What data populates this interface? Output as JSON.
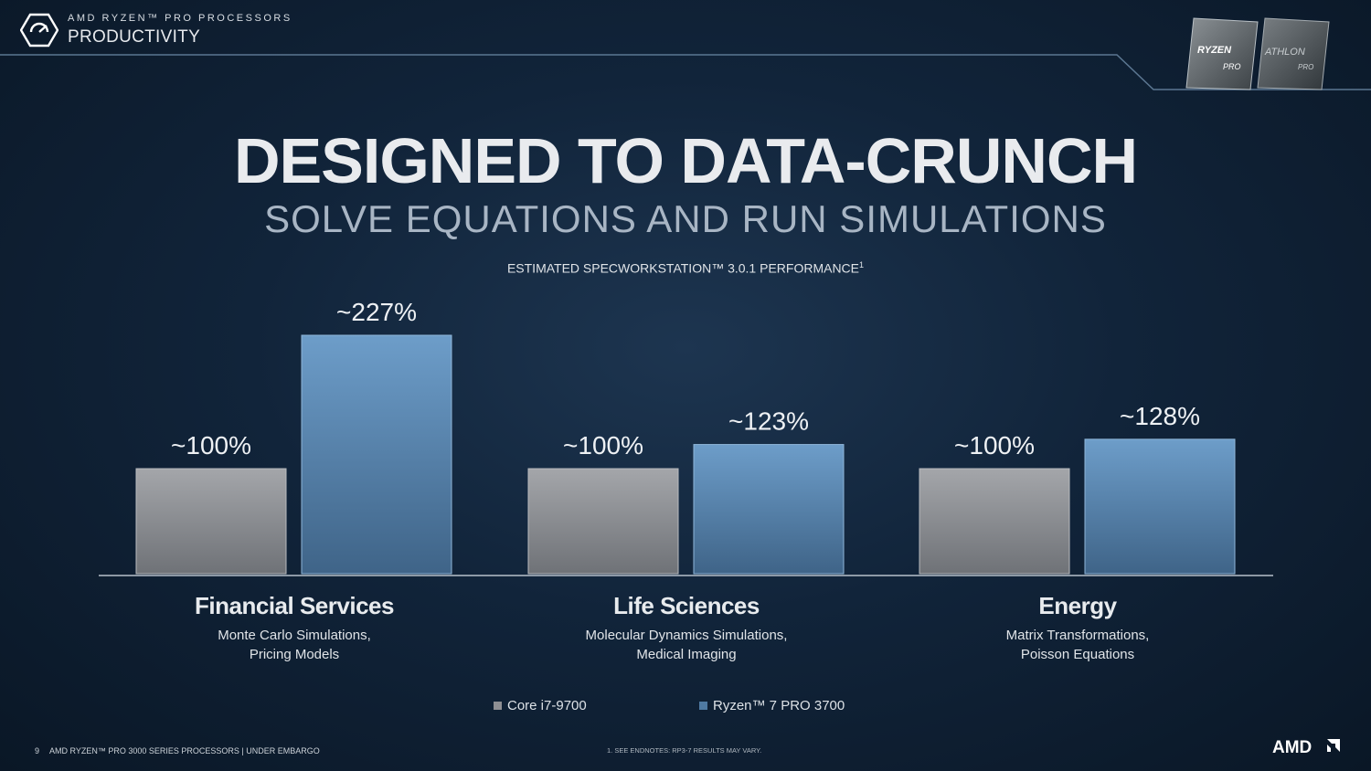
{
  "header": {
    "super": "AMD RYZEN™ PRO PROCESSORS",
    "title": "PRODUCTIVITY",
    "chips": [
      "RYZEN PRO",
      "ATHLON PRO"
    ]
  },
  "title": "DESIGNED TO DATA-CRUNCH",
  "subtitle": "SOLVE EQUATIONS AND RUN SIMULATIONS",
  "chart_heading": "ESTIMATED SPECWORKSTATION™ 3.0.1 PERFORMANCE",
  "chart_heading_sup": "1",
  "categories": [
    {
      "name": "Financial Services",
      "line1": "Monte Carlo Simulations,",
      "line2": "Pricing Models"
    },
    {
      "name": "Life Sciences",
      "line1": "Molecular Dynamics Simulations,",
      "line2": "Medical Imaging"
    },
    {
      "name": "Energy",
      "line1": "Matrix Transformations,",
      "line2": "Poisson Equations"
    }
  ],
  "chart_data": {
    "type": "bar",
    "title": "ESTIMATED SPECWORKSTATION™ 3.0.1 PERFORMANCE",
    "categories": [
      "Financial Services",
      "Life Sciences",
      "Energy"
    ],
    "series": [
      {
        "name": "Core i7-9700",
        "values": [
          100,
          100,
          100
        ],
        "labels": [
          "~100%",
          "~100%",
          "~100%"
        ],
        "color": "#9a9ca1"
      },
      {
        "name": "Ryzen™ 7 PRO 3700",
        "values": [
          227,
          123,
          128
        ],
        "labels": [
          "~227%",
          "~123%",
          "~128%"
        ],
        "color": "#5f8fbd"
      }
    ],
    "ylim": [
      0,
      227
    ],
    "grid": false,
    "legend": "bottom-center"
  },
  "legend": [
    {
      "label": "Core i7-9700",
      "color": "#8e8f93"
    },
    {
      "label": "Ryzen™ 7 PRO 3700",
      "color": "#4f7aa3"
    }
  ],
  "footer": {
    "page": "9",
    "text": "AMD RYZEN™ PRO 3000 SERIES PROCESSORS | UNDER EMBARGO",
    "footnote": "1. SEE ENDNOTES: RP3-7 RESULTS MAY VARY.",
    "brand": "AMD"
  }
}
